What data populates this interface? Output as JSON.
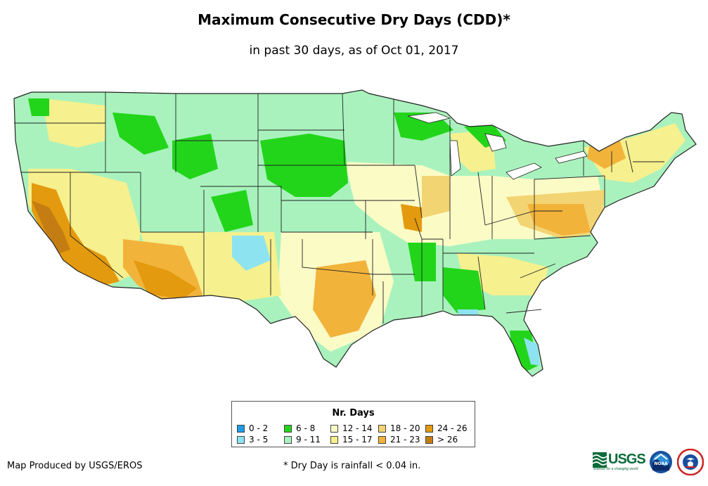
{
  "title": "Maximum Consecutive Dry Days (CDD)*",
  "subtitle": "in past 30 days, as of Oct 01, 2017",
  "legend": {
    "title": "Nr. Days",
    "items": [
      {
        "label": "0 - 2",
        "color": "#1f9be6"
      },
      {
        "label": "3 - 5",
        "color": "#8ee3f0"
      },
      {
        "label": "6 - 8",
        "color": "#22d51a"
      },
      {
        "label": "9 - 11",
        "color": "#a9f2bd"
      },
      {
        "label": "12 - 14",
        "color": "#fbfbc6"
      },
      {
        "label": "15 - 17",
        "color": "#f6f08e"
      },
      {
        "label": "18 - 20",
        "color": "#f3d472"
      },
      {
        "label": "21 - 23",
        "color": "#f2b33b"
      },
      {
        "label": "24 - 26",
        "color": "#e49a0e"
      },
      {
        "label": "> 26",
        "color": "#c47d12"
      }
    ]
  },
  "credit": "Map Produced by USGS/EROS",
  "footnote": "* Dry Day is rainfall < 0.04 in.",
  "logos": {
    "usgs_text": "USGS",
    "usgs_tagline": "science for a changing world",
    "noaa_text": "NOAA",
    "nws_text": "NATIONAL WEATHER SERVICE"
  },
  "colors": {
    "state_border": "#222222",
    "land_base": "#a9f2bd"
  }
}
